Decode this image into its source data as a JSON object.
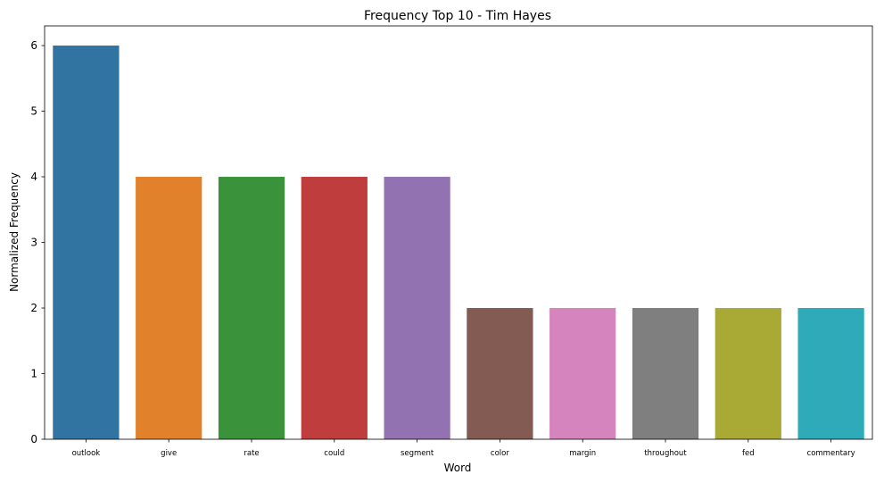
{
  "chart_data": {
    "type": "bar",
    "title": "Frequency Top 10 - Tim Hayes",
    "xlabel": "Word",
    "ylabel": "Normalized Frequency",
    "categories": [
      "outlook",
      "give",
      "rate",
      "could",
      "segment",
      "color",
      "margin",
      "throughout",
      "fed",
      "commentary"
    ],
    "values": [
      6,
      4,
      4,
      4,
      4,
      2,
      2,
      2,
      2,
      2
    ],
    "colors": [
      "#3274a1",
      "#e1812c",
      "#3a923a",
      "#c03d3e",
      "#9372b2",
      "#845b53",
      "#d684bd",
      "#7f7f7f",
      "#a9aa35",
      "#2eaab8"
    ],
    "ylim": [
      0,
      6.3
    ],
    "yticks": [
      0,
      1,
      2,
      3,
      4,
      5,
      6
    ],
    "grid": false,
    "legend": "none"
  }
}
